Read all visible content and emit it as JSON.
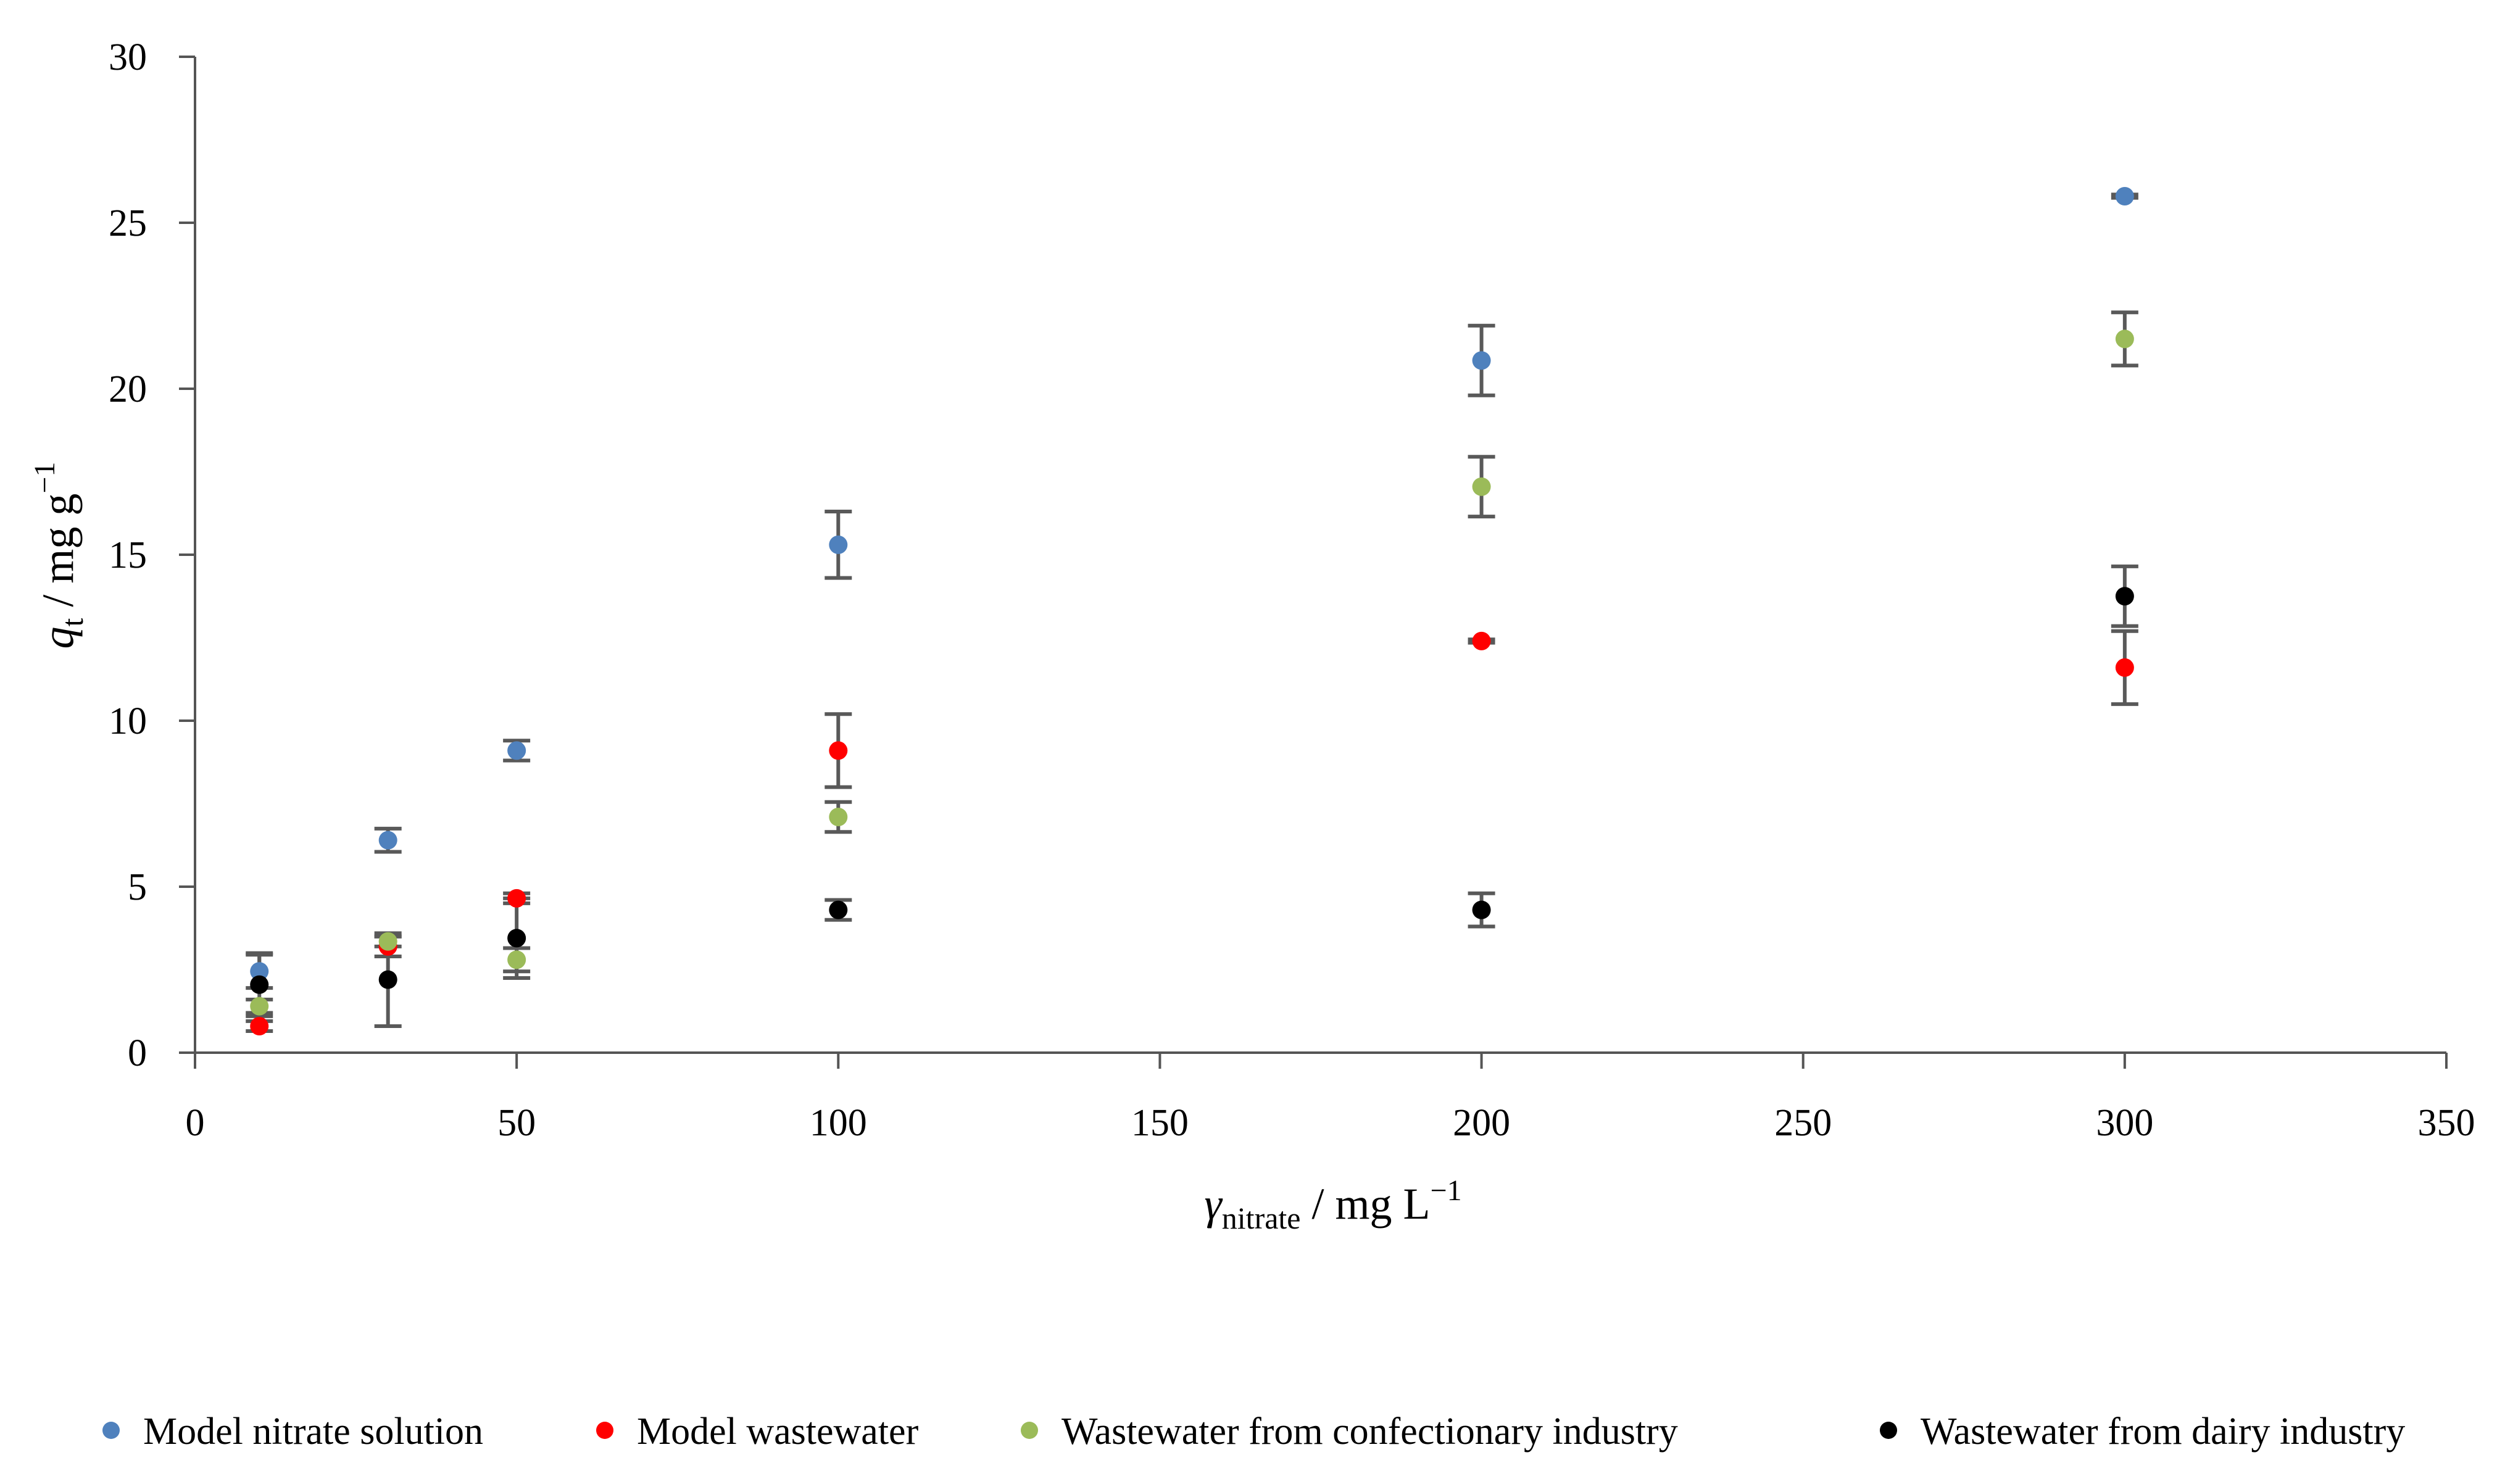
{
  "chart_data": {
    "type": "scatter",
    "title": "",
    "xlabel": {
      "main": "γ",
      "sub": "nitrate",
      "rest": " / mg L",
      "sup": "−1"
    },
    "ylabel": {
      "main": "q",
      "sub": "t",
      "rest": " / mg g",
      "sup": "−1"
    },
    "xlim": [
      0,
      350
    ],
    "ylim": [
      0,
      30
    ],
    "x_ticks": [
      0,
      50,
      100,
      150,
      200,
      250,
      300,
      350
    ],
    "y_ticks": [
      0,
      5,
      10,
      15,
      20,
      25,
      30
    ],
    "grid": false,
    "legend_position": "bottom",
    "series": [
      {
        "name": "Model nitrate solution",
        "color": "#4f81bd",
        "x": [
          10,
          30,
          50,
          100,
          200,
          300
        ],
        "y": [
          2.45,
          6.4,
          9.1,
          15.3,
          20.85,
          25.8
        ],
        "err": [
          0.5,
          0.35,
          0.3,
          1.0,
          1.05,
          0.05
        ]
      },
      {
        "name": "Model wastewater",
        "color": "#ff0000",
        "x": [
          10,
          30,
          50,
          100,
          200,
          300
        ],
        "y": [
          0.8,
          3.2,
          4.65,
          9.1,
          12.4,
          11.6
        ],
        "err": [
          0.15,
          0.3,
          0.15,
          1.1,
          0.05,
          1.1
        ]
      },
      {
        "name": "Wastewater from confectionary industry",
        "color": "#9bbb59",
        "x": [
          10,
          30,
          50,
          100,
          200,
          300
        ],
        "y": [
          1.4,
          3.35,
          2.8,
          7.1,
          17.05,
          21.5
        ],
        "err": [
          0.2,
          0.15,
          0.35,
          0.45,
          0.9,
          0.8
        ]
      },
      {
        "name": "Wastewater from dairy industry",
        "color": "#000000",
        "x": [
          10,
          30,
          50,
          100,
          200,
          300
        ],
        "y": [
          2.05,
          2.2,
          3.45,
          4.3,
          4.3,
          13.75
        ],
        "err": [
          0.95,
          1.4,
          1.2,
          0.3,
          0.5,
          0.9
        ]
      }
    ]
  }
}
